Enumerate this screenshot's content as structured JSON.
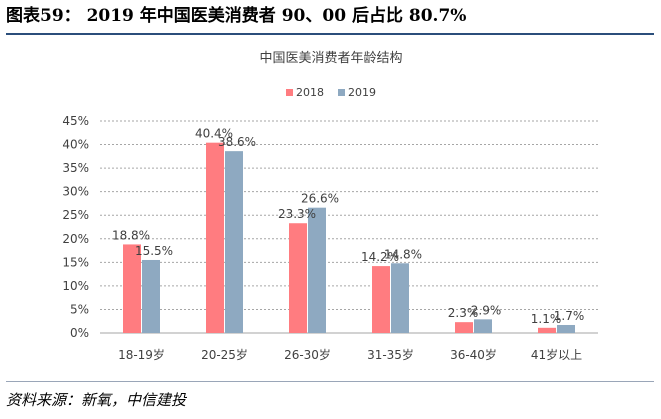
{
  "page": {
    "heading": "图表59： 2019 年中国医美消费者 90、00 后占比 80.7%",
    "source": "资料来源：新氧，中信建投"
  },
  "chart_data": {
    "type": "bar",
    "title": "中国医美消费者年龄结构",
    "categories": [
      "18-19岁",
      "20-25岁",
      "26-30岁",
      "31-35岁",
      "36-40岁",
      "41岁以上"
    ],
    "series": [
      {
        "name": "2018",
        "color": "#ff7c80",
        "values": [
          18.8,
          40.4,
          23.3,
          14.2,
          2.3,
          1.1
        ],
        "labels": [
          "18.8%",
          "40.4%",
          "23.3%",
          "14.2%",
          "2.3%",
          "1.1%"
        ]
      },
      {
        "name": "2019",
        "color": "#8ea9c1",
        "values": [
          15.5,
          38.6,
          26.6,
          14.8,
          2.9,
          1.7
        ],
        "labels": [
          "15.5%",
          "38.6%",
          "26.6%",
          "14.8%",
          "2.9%",
          "1.7%"
        ]
      }
    ],
    "yticks": [
      "0%",
      "5%",
      "10%",
      "15%",
      "20%",
      "25%",
      "30%",
      "35%",
      "40%",
      "45%"
    ],
    "ylim": [
      0,
      45
    ],
    "legend_position": "top-center",
    "grid": true
  }
}
